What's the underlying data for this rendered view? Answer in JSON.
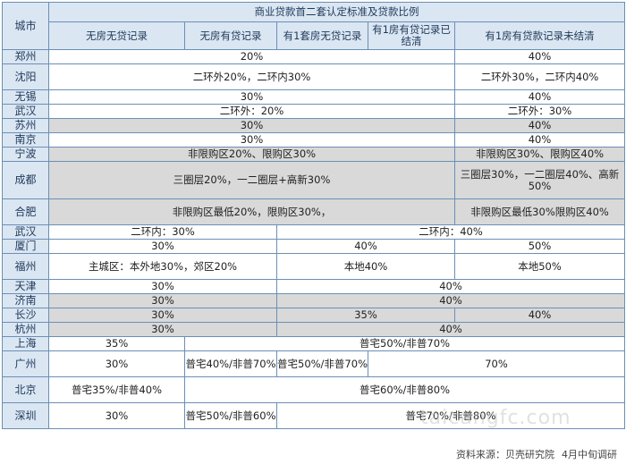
{
  "table": {
    "title": "商业贷款首二套认定标准及贷款比例",
    "city_header": "城市",
    "columns": [
      "无房无贷记录",
      "无房有贷记录",
      "有1套房无贷记录",
      "有1房有贷记录已结清",
      "有1房有贷款记录未结清"
    ],
    "rows": [
      {
        "city": "郑州",
        "cells": [
          "20%",
          "40%"
        ]
      },
      {
        "city": "沈阳",
        "cells": [
          "二环外20%，二环内30%",
          "二环外30%，二环内40%"
        ]
      },
      {
        "city": "无锡",
        "cells": [
          "30%",
          "40%"
        ]
      },
      {
        "city": "武汉",
        "cells": [
          "二环外：20%",
          "二环外：30%"
        ]
      },
      {
        "city": "苏州",
        "cells": [
          "30%",
          "40%"
        ]
      },
      {
        "city": "南京",
        "cells": [
          "30%",
          "40%"
        ]
      },
      {
        "city": "宁波",
        "cells": [
          "非限购区20%、限购区30%",
          "非限购区30%、限购区40%"
        ]
      },
      {
        "city": "成都",
        "cells": [
          "三圈层20%，一二圈层+高新30%",
          "三圈层30%，一二圈层40%、高新50%"
        ]
      },
      {
        "city": "合肥",
        "cells": [
          "非限购区最低20%，限购区30%，",
          "非限购区最低30%限购区40%"
        ]
      },
      {
        "city": "武汉",
        "cells": [
          "二环内：30%",
          "二环内：40%"
        ]
      },
      {
        "city": "厦门",
        "cells": [
          "30%",
          "40%",
          "50%"
        ]
      },
      {
        "city": "福州",
        "cells": [
          "主城区：本外地30%，郊区20%",
          "本地40%",
          "本地50%"
        ]
      },
      {
        "city": "天津",
        "cells": [
          "30%",
          "40%"
        ]
      },
      {
        "city": "济南",
        "cells": [
          "30%",
          "40%"
        ]
      },
      {
        "city": "长沙",
        "cells": [
          "30%",
          "35%",
          "40%"
        ]
      },
      {
        "city": "杭州",
        "cells": [
          "30%",
          "40%"
        ]
      },
      {
        "city": "上海",
        "cells": [
          "35%",
          "普宅50%/非普70%"
        ]
      },
      {
        "city": "广州",
        "cells": [
          "30%",
          "普宅40%/非普70%",
          "普宅50%/非普70%",
          "70%"
        ]
      },
      {
        "city": "北京",
        "cells": [
          "普宅35%/非普40%",
          "普宅60%/非普80%"
        ]
      },
      {
        "city": "深圳",
        "cells": [
          "30%",
          "普宅50%/非普60%",
          "普宅70%/非普80%"
        ]
      }
    ]
  },
  "footer": {
    "source": "资料来源：贝壳研究院",
    "date": "4月中旬调研"
  },
  "watermark": "taicangfc.com"
}
